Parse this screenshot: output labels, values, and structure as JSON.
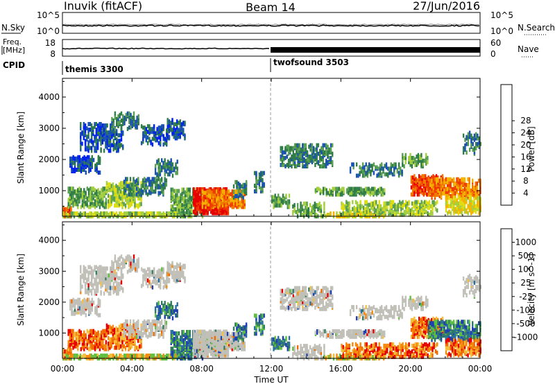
{
  "header": {
    "station": "Inuvik (fitACF)",
    "beam": "Beam 14",
    "date": "27/Jun/2016"
  },
  "nsky_panel": {
    "left_label": "N.Sky",
    "left_ticks": [
      "10^5",
      "10^0"
    ],
    "right_label": "N.Search",
    "right_ticks": [
      "10^5",
      "10^0"
    ]
  },
  "freq_panel": {
    "left_label_line1": "Freq.",
    "left_label_line2": "[MHz]",
    "left_ticks": [
      "18",
      "8"
    ],
    "right_label": "Nave",
    "right_ticks": [
      "60",
      "0"
    ]
  },
  "cpid": {
    "label": "CPID",
    "segments": [
      {
        "name": "themis 3300",
        "start_hour": 0
      },
      {
        "name": "twofsound 3503",
        "start_hour": 12
      }
    ]
  },
  "chart_data": [
    {
      "type": "heatmap",
      "name": "power",
      "ylabel": "Slant Range [km]",
      "yticks": [
        1000,
        2000,
        3000,
        4000
      ],
      "ylim": [
        180,
        4600
      ],
      "xlim_hours": [
        0,
        24
      ],
      "xlabel": "",
      "colorbar": {
        "label": "Power [dB]",
        "ticks": [
          "4",
          "8",
          "12",
          "16",
          "20",
          "24",
          "28"
        ],
        "colors": [
          "#0022ee",
          "#1a52b0",
          "#2f7c48",
          "#5a9f52",
          "#a4d040",
          "#e0dd10",
          "#f5b300",
          "#f07a00",
          "#ee3b00",
          "#e60000"
        ]
      }
    },
    {
      "type": "heatmap",
      "name": "velocity",
      "ylabel": "Slant Range [km]",
      "yticks": [
        1000,
        2000,
        3000,
        4000
      ],
      "ylim": [
        180,
        4600
      ],
      "xlim_hours": [
        0,
        24
      ],
      "xlabel": "Time UT",
      "xticks": [
        "00:00",
        "04:00",
        "08:00",
        "12:00",
        "16:00",
        "20:00",
        "00:00"
      ],
      "colorbar": {
        "label": "Velocity [m s^-1]",
        "ticks": [
          "1000",
          "500",
          "100",
          "25",
          "-25",
          "-100",
          "-500",
          "-1000"
        ],
        "colors": [
          "#1f3fb0",
          "#2a6fa0",
          "#2f7a60",
          "#5fbf40",
          "#c8c8c0",
          "#f5c040",
          "#f58a10",
          "#f06a00",
          "#e60000"
        ]
      },
      "ground_scatter_color": "#c0c0b8"
    }
  ]
}
